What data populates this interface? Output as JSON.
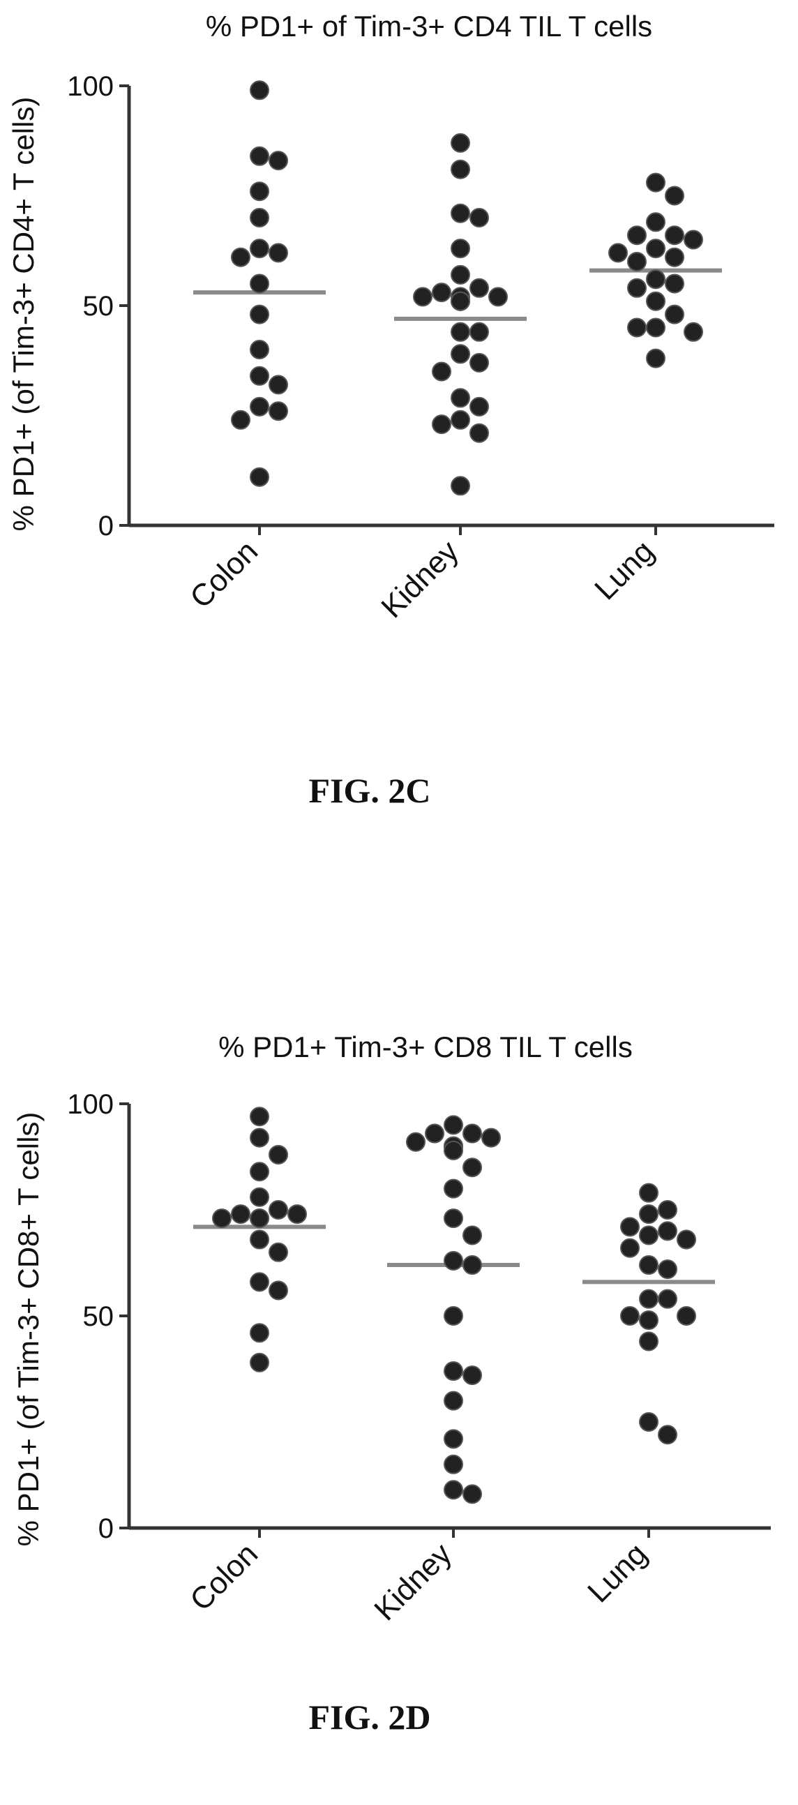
{
  "chart_data": [
    {
      "type": "scatter",
      "title": "% PD1+ of Tim-3+ CD4 TIL T cells",
      "ylabel": "% PD1+ (of Tim-3+ CD4+ T cells)",
      "xlabel": "",
      "ylim": [
        0,
        100
      ],
      "yticks": [
        0,
        50,
        100
      ],
      "categories": [
        "Colon",
        "Kidney",
        "Lung"
      ],
      "series": [
        {
          "category": "Colon",
          "values": [
            99,
            84,
            83,
            76,
            70,
            63,
            62,
            61,
            55,
            48,
            40,
            34,
            32,
            27,
            26,
            24,
            11
          ],
          "mean": 53
        },
        {
          "category": "Kidney",
          "values": [
            87,
            81,
            71,
            70,
            63,
            57,
            54,
            53,
            52,
            52,
            52,
            51,
            51,
            51,
            44,
            44,
            39,
            37,
            35,
            29,
            27,
            24,
            23,
            21,
            9
          ],
          "mean": 47
        },
        {
          "category": "Lung",
          "values": [
            78,
            75,
            69,
            66,
            66,
            65,
            63,
            62,
            61,
            60,
            56,
            55,
            54,
            51,
            48,
            45,
            45,
            44,
            38
          ],
          "mean": 58
        }
      ],
      "grid": false,
      "caption": "FIG. 2C"
    },
    {
      "type": "scatter",
      "title": "% PD1+ Tim-3+ CD8 TIL T cells",
      "ylabel": "% PD1+ (of Tim-3+ CD8+ T cells)",
      "xlabel": "",
      "ylim": [
        0,
        100
      ],
      "yticks": [
        0,
        50,
        100
      ],
      "categories": [
        "Colon",
        "Kidney",
        "Lung"
      ],
      "series": [
        {
          "category": "Colon",
          "values": [
            97,
            92,
            88,
            84,
            78,
            75,
            74,
            74,
            73,
            73,
            73,
            68,
            65,
            58,
            56,
            46,
            39
          ],
          "mean": 71
        },
        {
          "category": "Kidney",
          "values": [
            95,
            93,
            93,
            92,
            91,
            90,
            90,
            89,
            85,
            80,
            73,
            69,
            63,
            62,
            50,
            37,
            36,
            30,
            21,
            15,
            9,
            8
          ],
          "mean": 62
        },
        {
          "category": "Lung",
          "values": [
            79,
            75,
            74,
            71,
            70,
            69,
            68,
            66,
            62,
            61,
            54,
            54,
            50,
            50,
            49,
            44,
            25,
            22
          ],
          "mean": 58
        }
      ],
      "grid": false,
      "caption": "FIG. 2D"
    }
  ]
}
